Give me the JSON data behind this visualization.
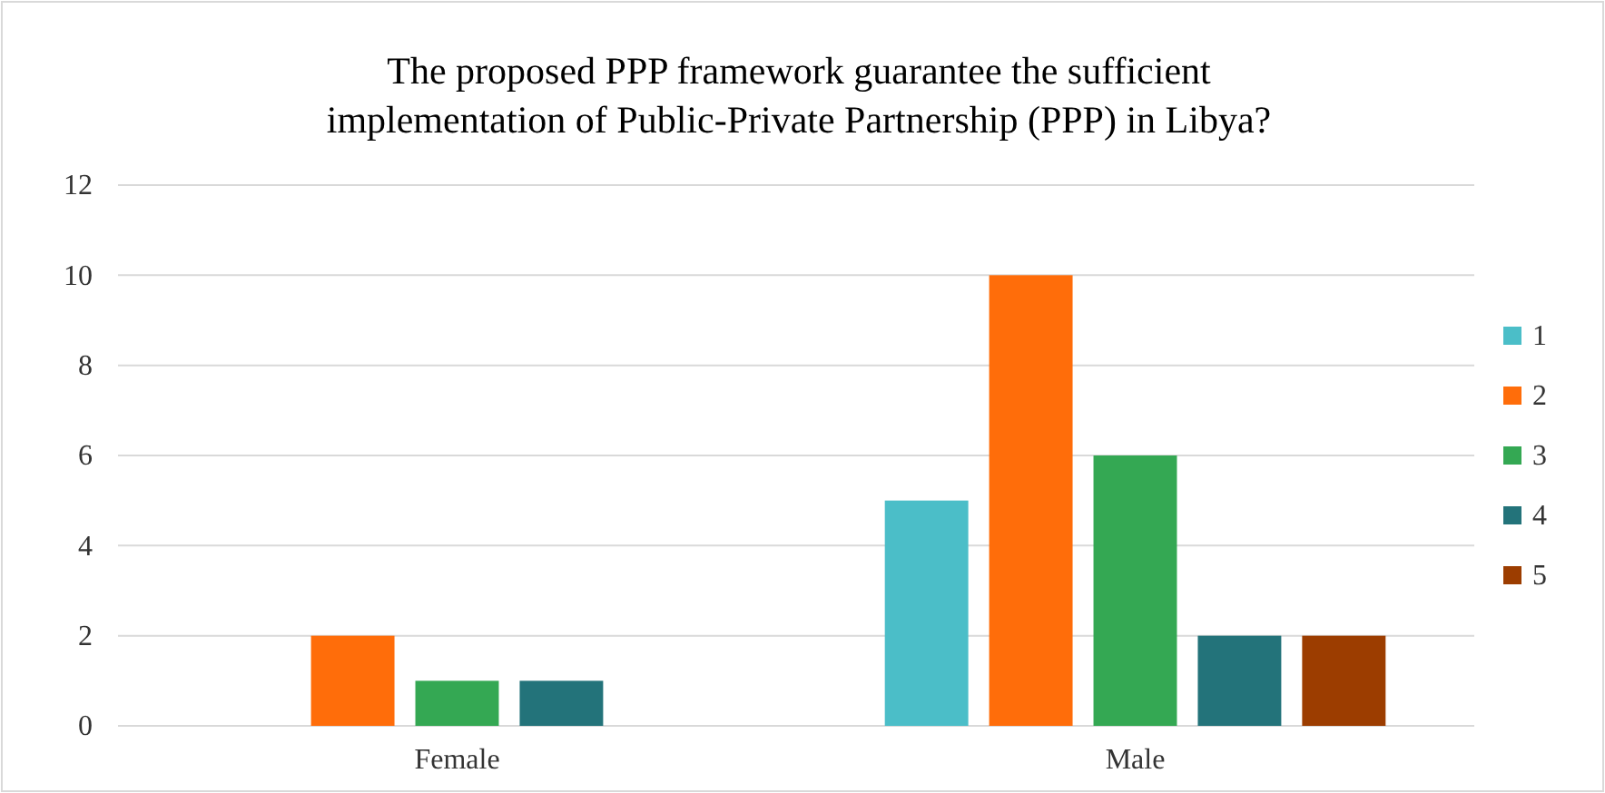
{
  "chart_data": {
    "type": "bar",
    "title": "The proposed PPP framework guarantee the sufficient implementation of Public-Private Partnership (PPP) in Libya?",
    "categories": [
      "Female",
      "Male"
    ],
    "series": [
      {
        "name": "1",
        "color": "#4bbec8",
        "values": [
          0,
          5
        ]
      },
      {
        "name": "2",
        "color": "#ff6d0a",
        "values": [
          2,
          10
        ]
      },
      {
        "name": "3",
        "color": "#34a853",
        "values": [
          1,
          6
        ]
      },
      {
        "name": "4",
        "color": "#23737a",
        "values": [
          1,
          2
        ]
      },
      {
        "name": "5",
        "color": "#9c3d00",
        "values": [
          0,
          2
        ]
      }
    ],
    "ylim": [
      0,
      12
    ],
    "yticks": [
      0,
      2,
      4,
      6,
      8,
      10,
      12
    ],
    "grid": "y",
    "legend": "right"
  }
}
